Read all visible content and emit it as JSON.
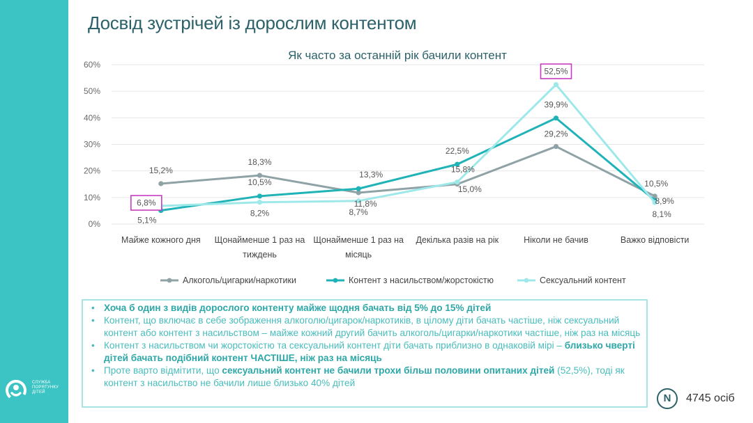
{
  "page_title": "Досвід зустрічей із дорослим контентом",
  "brand": {
    "name": "СЛУЖБА ПОРЯТУНКУ ДІТЕЙ",
    "logo_icon": "child-rescue-logo-icon",
    "sidebar_color": "#3cc3c3"
  },
  "chart_data": {
    "type": "line",
    "title": "Як часто за останній рік бачили контент",
    "categories": [
      "Майже кожного дня",
      "Щонайменше 1 раз на тиждень",
      "Щонайменше 1 раз на місяць",
      "Декілька разів на рік",
      "Ніколи не бачив",
      "Важко відповісти"
    ],
    "category_lines": [
      [
        "Майже кожного дня"
      ],
      [
        "Щонайменше 1 раз на",
        "тиждень"
      ],
      [
        "Щонайменше 1 раз на",
        "місяць"
      ],
      [
        "Декілька разів на рік"
      ],
      [
        "Ніколи не бачив"
      ],
      [
        "Важко відповісти"
      ]
    ],
    "series": [
      {
        "name": "Алкоголь/цигарки/наркотики",
        "color": "#8fa3a6",
        "values": [
          15.2,
          18.3,
          11.8,
          15.0,
          29.2,
          10.5
        ],
        "labels": [
          "15,2%",
          "18,3%",
          "11,8%",
          "15,0%",
          "29,2%",
          "10,5%"
        ]
      },
      {
        "name": "Контент з насильством/жорстокістю",
        "color": "#1fb3b8",
        "values": [
          5.1,
          10.5,
          13.3,
          22.5,
          39.9,
          8.9
        ],
        "labels": [
          "5,1%",
          "10,5%",
          "13,3%",
          "22,5%",
          "39,9%",
          "8,9%"
        ]
      },
      {
        "name": "Сексуальний контент",
        "color": "#9ee8ea",
        "values": [
          6.8,
          8.2,
          8.7,
          15.8,
          52.5,
          8.1
        ],
        "labels": [
          "6,8%",
          "8,2%",
          "8,7%",
          "15,8%",
          "52,5%",
          "8,1%"
        ]
      }
    ],
    "y_ticks": [
      "0%",
      "10%",
      "20%",
      "30%",
      "40%",
      "50%",
      "60%"
    ],
    "ylim": [
      0,
      60
    ],
    "grid": true,
    "legend_position": "bottom",
    "highlight_color": "#c83cc0"
  },
  "summary": {
    "bullets": [
      [
        {
          "t": "Хоча б один з видів дорослого контенту майже щодня бачать від 5% до 15% дітей",
          "s": true
        }
      ],
      [
        {
          "t": "Контент, що включає в себе зображення алкоголю/цигарок/наркотиків, в цілому діти бачать частіше, ніж сексуальний контент або контент з насильством – майже кожний другий бачить алкоголь/цигарки/наркотики частіше, ніж раз на місяць",
          "s": false
        }
      ],
      [
        {
          "t": "Контент з насильством чи жорстокістю та сексуальний контент діти бачать приблизно в однаковій мірі – ",
          "s": false
        },
        {
          "t": "близько чверті дітей бачать подібний контент ЧАСТІШЕ, ніж раз на місяць",
          "s": true
        }
      ],
      [
        {
          "t": "Проте варто відмітити, що ",
          "s": false
        },
        {
          "t": "сексуальний контент не бачили трохи більш половини опитаних дітей",
          "s": true
        },
        {
          "t": " (52,5%), тоді як контент з насильство не бачили лише близько 40% дітей",
          "s": false
        }
      ]
    ]
  },
  "sample": {
    "badge": "N",
    "text": "4745 осіб"
  }
}
